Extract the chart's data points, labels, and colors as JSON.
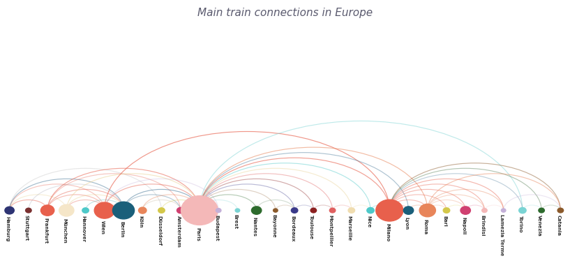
{
  "title": "Main train connections in Europe",
  "title_color": "#5a5a6e",
  "background_color": "#ffffff",
  "cities": [
    {
      "name": "Hamburg",
      "size": 12,
      "color": "#2e3473"
    },
    {
      "name": "Stuttgart",
      "size": 7,
      "color": "#7a3030"
    },
    {
      "name": "Frankfurt",
      "size": 18,
      "color": "#e8604c"
    },
    {
      "name": "München",
      "size": 20,
      "color": "#f5e6c8"
    },
    {
      "name": "Hannover",
      "size": 8,
      "color": "#4ec9c9"
    },
    {
      "name": "Wien",
      "size": 28,
      "color": "#e8604c"
    },
    {
      "name": "Berlin",
      "size": 30,
      "color": "#1a5f7a"
    },
    {
      "name": "Köln",
      "size": 10,
      "color": "#e8855a"
    },
    {
      "name": "Düsseldorf",
      "size": 8,
      "color": "#d4c84a"
    },
    {
      "name": "Amsterdam",
      "size": 9,
      "color": "#d04070"
    },
    {
      "name": "Paris",
      "size": 52,
      "color": "#f4b8b8"
    },
    {
      "name": "Budapest",
      "size": 6,
      "color": "#c4b0d8"
    },
    {
      "name": "Brest",
      "size": 5,
      "color": "#7ad4d4"
    },
    {
      "name": "Nantes",
      "size": 13,
      "color": "#2d6b2d"
    },
    {
      "name": "Bayonne",
      "size": 5,
      "color": "#8b5a2b"
    },
    {
      "name": "Bordeaux",
      "size": 8,
      "color": "#3a3a8a"
    },
    {
      "name": "Toulouse",
      "size": 7,
      "color": "#8b2020"
    },
    {
      "name": "Montpellier",
      "size": 7,
      "color": "#e06060"
    },
    {
      "name": "Marseille",
      "size": 8,
      "color": "#f0ddb0"
    },
    {
      "name": "Nice",
      "size": 9,
      "color": "#4ec9c9"
    },
    {
      "name": "Milano",
      "size": 38,
      "color": "#e8604c"
    },
    {
      "name": "Lyon",
      "size": 13,
      "color": "#1a5f7a"
    },
    {
      "name": "Roma",
      "size": 22,
      "color": "#e8855a"
    },
    {
      "name": "Bari",
      "size": 8,
      "color": "#d4c84a"
    },
    {
      "name": "Napoli",
      "size": 13,
      "color": "#d04070"
    },
    {
      "name": "Brindisi",
      "size": 6,
      "color": "#f4b8b8"
    },
    {
      "name": "Lamezia Terme",
      "size": 5,
      "color": "#c4b0d8"
    },
    {
      "name": "Torino",
      "size": 9,
      "color": "#7ad4d4"
    },
    {
      "name": "Venezia",
      "size": 7,
      "color": "#2d6b2d"
    },
    {
      "name": "Catania",
      "size": 7,
      "color": "#8b5a2b"
    }
  ],
  "connections": [
    [
      0,
      2,
      "#e8604c",
      0.45
    ],
    [
      0,
      3,
      "#e8d090",
      0.35
    ],
    [
      0,
      5,
      "#e87060",
      0.4
    ],
    [
      0,
      6,
      "#4a7a9a",
      0.5
    ],
    [
      0,
      8,
      "#b0b0b0",
      0.3
    ],
    [
      1,
      6,
      "#a0a0b0",
      0.3
    ],
    [
      2,
      5,
      "#e8604c",
      0.4
    ],
    [
      2,
      6,
      "#e87060",
      0.5
    ],
    [
      2,
      9,
      "#e87060",
      0.4
    ],
    [
      2,
      10,
      "#e8604c",
      0.55
    ],
    [
      3,
      5,
      "#e87060",
      0.4
    ],
    [
      3,
      6,
      "#e8d090",
      0.4
    ],
    [
      3,
      10,
      "#e8d090",
      0.5
    ],
    [
      4,
      6,
      "#5ababa",
      0.35
    ],
    [
      5,
      6,
      "#e87060",
      0.4
    ],
    [
      5,
      10,
      "#e87060",
      0.55
    ],
    [
      5,
      11,
      "#c4b0d8",
      0.35
    ],
    [
      5,
      20,
      "#e8604c",
      0.65
    ],
    [
      6,
      9,
      "#4a7a9a",
      0.4
    ],
    [
      6,
      10,
      "#4a7a9a",
      0.55
    ],
    [
      7,
      9,
      "#c0b090",
      0.3
    ],
    [
      7,
      10,
      "#e8855a",
      0.4
    ],
    [
      8,
      10,
      "#d4c84a",
      0.35
    ],
    [
      9,
      10,
      "#d04070",
      0.4
    ],
    [
      10,
      11,
      "#c4b0d8",
      0.3
    ],
    [
      10,
      12,
      "#7ad4d4",
      0.28
    ],
    [
      10,
      13,
      "#2d6b2d",
      0.35
    ],
    [
      10,
      14,
      "#8b5a2b",
      0.28
    ],
    [
      10,
      15,
      "#3a3a8a",
      0.35
    ],
    [
      10,
      16,
      "#8b2020",
      0.38
    ],
    [
      10,
      17,
      "#e06060",
      0.4
    ],
    [
      10,
      18,
      "#e8d090",
      0.42
    ],
    [
      10,
      19,
      "#4ec9c9",
      0.45
    ],
    [
      10,
      20,
      "#e8604c",
      0.6
    ],
    [
      10,
      21,
      "#4a7a9a",
      0.45
    ],
    [
      10,
      22,
      "#e8855a",
      0.55
    ],
    [
      10,
      27,
      "#7ad4d4",
      0.48
    ],
    [
      13,
      15,
      "#3a6a3a",
      0.22
    ],
    [
      14,
      15,
      "#8b5a2b",
      0.2
    ],
    [
      15,
      16,
      "#3a3a8a",
      0.22
    ],
    [
      16,
      17,
      "#8b2020",
      0.22
    ],
    [
      17,
      18,
      "#e06060",
      0.22
    ],
    [
      18,
      19,
      "#e8d090",
      0.22
    ],
    [
      19,
      20,
      "#4ec9c9",
      0.3
    ],
    [
      20,
      21,
      "#e8604c",
      0.32
    ],
    [
      20,
      22,
      "#e8604c",
      0.38
    ],
    [
      20,
      23,
      "#e8604c",
      0.38
    ],
    [
      20,
      24,
      "#e8604c",
      0.42
    ],
    [
      20,
      25,
      "#e8604c",
      0.42
    ],
    [
      20,
      26,
      "#e8604c",
      0.45
    ],
    [
      20,
      27,
      "#4a7a9a",
      0.35
    ],
    [
      20,
      28,
      "#3a6a3a",
      0.38
    ],
    [
      20,
      29,
      "#8b5a2b",
      0.48
    ],
    [
      21,
      22,
      "#e8855a",
      0.3
    ],
    [
      22,
      23,
      "#e8855a",
      0.22
    ],
    [
      22,
      24,
      "#e8855a",
      0.28
    ],
    [
      22,
      25,
      "#e8855a",
      0.32
    ],
    [
      22,
      26,
      "#e8855a",
      0.38
    ],
    [
      22,
      29,
      "#e8855a",
      0.48
    ],
    [
      23,
      24,
      "#d4c84a",
      0.2
    ],
    [
      24,
      25,
      "#d04070",
      0.2
    ],
    [
      25,
      26,
      "#f4b8b8",
      0.2
    ],
    [
      26,
      29,
      "#c4b0d8",
      0.32
    ],
    [
      27,
      28,
      "#7ad4d4",
      0.2
    ],
    [
      28,
      29,
      "#3a6a3a",
      0.2
    ]
  ]
}
